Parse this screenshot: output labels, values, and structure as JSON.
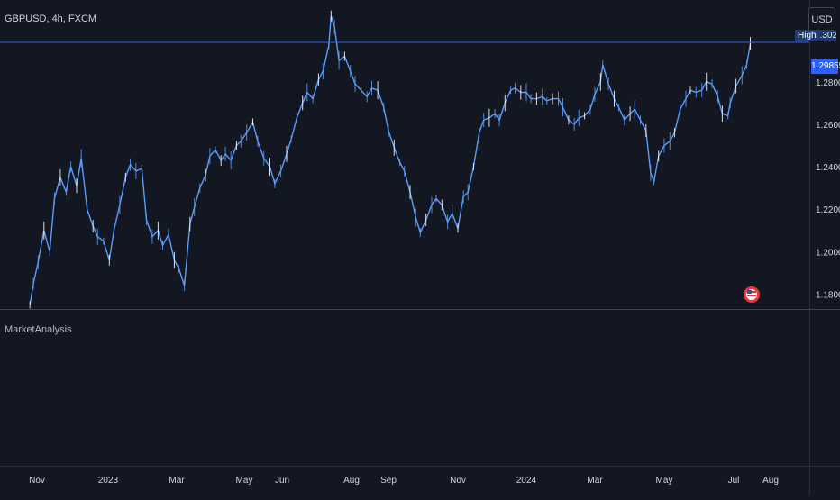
{
  "header": {
    "symbol": "GBPUSD, 4h, FXCM"
  },
  "indicator": {
    "title": "MarketAnalysis"
  },
  "price_scale": {
    "currency": "USD",
    "high_label": "High",
    "high_value_hidden": "1.3021",
    "last_price": "1.29855"
  },
  "colors": {
    "background": "#131722",
    "series": "#5b9cf6",
    "wick": "#ffffff",
    "price_line": "#2962ff",
    "grid_border": "#2a2e39",
    "text": "#d1d4dc",
    "flag_badge": "#e53935"
  },
  "icons": {
    "flag_badge": "us-flag-icon"
  },
  "chart_data": {
    "type": "line",
    "title": "",
    "xlabel": "",
    "ylabel": "",
    "ylim": [
      1.173,
      1.3185
    ],
    "y_ticks": [
      "1.18000",
      "1.20000",
      "1.22000",
      "1.24000",
      "1.26000",
      "1.28000"
    ],
    "x_ticks": [
      "Nov",
      "2023",
      "Mar",
      "May",
      "Jun",
      "Aug",
      "Sep",
      "Nov",
      "2024",
      "Mar",
      "May",
      "Jul",
      "Aug"
    ],
    "last_value": 1.29855,
    "series": [
      {
        "x": [
          "2022-10-26",
          "2022-10-29",
          "2022-11-02",
          "2022-11-07",
          "2022-11-12",
          "2022-11-16",
          "2022-11-21",
          "2022-11-26",
          "2022-11-30",
          "2022-12-05",
          "2022-12-09",
          "2022-12-14",
          "2022-12-19",
          "2022-12-23",
          "2022-12-28",
          "2023-01-02",
          "2023-01-06",
          "2023-01-11",
          "2023-01-16",
          "2023-01-20",
          "2023-01-25",
          "2023-01-30",
          "2023-02-03",
          "2023-02-08",
          "2023-02-13",
          "2023-02-17",
          "2023-02-22",
          "2023-02-27",
          "2023-03-03",
          "2023-03-08",
          "2023-03-13",
          "2023-03-17",
          "2023-03-22",
          "2023-03-27",
          "2023-03-31",
          "2023-04-05",
          "2023-04-10",
          "2023-04-14",
          "2023-04-19",
          "2023-04-24",
          "2023-04-28",
          "2023-05-03",
          "2023-05-08",
          "2023-05-12",
          "2023-05-17",
          "2023-05-22",
          "2023-05-26",
          "2023-05-31",
          "2023-06-05",
          "2023-06-09",
          "2023-06-14",
          "2023-06-19",
          "2023-06-23",
          "2023-06-28",
          "2023-07-03",
          "2023-07-07",
          "2023-07-12",
          "2023-07-14",
          "2023-07-17",
          "2023-07-21",
          "2023-07-26",
          "2023-07-31",
          "2023-08-04",
          "2023-08-09",
          "2023-08-14",
          "2023-08-18",
          "2023-08-23",
          "2023-08-28",
          "2023-09-01",
          "2023-09-06",
          "2023-09-11",
          "2023-09-15",
          "2023-09-20",
          "2023-09-25",
          "2023-09-29",
          "2023-10-04",
          "2023-10-09",
          "2023-10-13",
          "2023-10-18",
          "2023-10-23",
          "2023-10-27",
          "2023-11-01",
          "2023-11-06",
          "2023-11-10",
          "2023-11-15",
          "2023-11-20",
          "2023-11-24",
          "2023-11-29",
          "2023-12-04",
          "2023-12-08",
          "2023-12-13",
          "2023-12-18",
          "2023-12-22",
          "2023-12-27",
          "2024-01-01",
          "2024-01-05",
          "2024-01-10",
          "2024-01-15",
          "2024-01-19",
          "2024-01-24",
          "2024-01-29",
          "2024-02-02",
          "2024-02-07",
          "2024-02-12",
          "2024-02-16",
          "2024-02-21",
          "2024-02-26",
          "2024-03-01",
          "2024-03-06",
          "2024-03-08",
          "2024-03-13",
          "2024-03-18",
          "2024-03-22",
          "2024-03-27",
          "2024-04-01",
          "2024-04-05",
          "2024-04-10",
          "2024-04-15",
          "2024-04-19",
          "2024-04-22",
          "2024-04-26",
          "2024-05-01",
          "2024-05-06",
          "2024-05-10",
          "2024-05-15",
          "2024-05-20",
          "2024-05-24",
          "2024-05-29",
          "2024-06-03",
          "2024-06-07",
          "2024-06-12",
          "2024-06-17",
          "2024-06-21",
          "2024-06-26",
          "2024-06-28",
          "2024-07-03",
          "2024-07-08",
          "2024-07-12",
          "2024-07-15"
        ],
        "values": [
          1.175,
          1.185,
          1.195,
          1.21,
          1.2,
          1.225,
          1.235,
          1.228,
          1.24,
          1.231,
          1.244,
          1.22,
          1.212,
          1.207,
          1.205,
          1.196,
          1.21,
          1.222,
          1.235,
          1.241,
          1.238,
          1.239,
          1.215,
          1.207,
          1.21,
          1.203,
          1.208,
          1.196,
          1.192,
          1.184,
          1.213,
          1.221,
          1.23,
          1.236,
          1.245,
          1.248,
          1.243,
          1.246,
          1.243,
          1.25,
          1.252,
          1.256,
          1.261,
          1.252,
          1.244,
          1.24,
          1.232,
          1.238,
          1.246,
          1.253,
          1.263,
          1.27,
          1.275,
          1.272,
          1.281,
          1.285,
          1.297,
          1.311,
          1.306,
          1.29,
          1.292,
          1.285,
          1.279,
          1.276,
          1.273,
          1.277,
          1.276,
          1.268,
          1.257,
          1.249,
          1.242,
          1.238,
          1.228,
          1.216,
          1.209,
          1.215,
          1.222,
          1.225,
          1.222,
          1.214,
          1.218,
          1.211,
          1.226,
          1.228,
          1.24,
          1.256,
          1.262,
          1.263,
          1.265,
          1.262,
          1.27,
          1.276,
          1.277,
          1.275,
          1.275,
          1.272,
          1.272,
          1.273,
          1.271,
          1.272,
          1.272,
          1.268,
          1.262,
          1.26,
          1.263,
          1.264,
          1.267,
          1.274,
          1.28,
          1.288,
          1.279,
          1.272,
          1.268,
          1.262,
          1.265,
          1.267,
          1.262,
          1.257,
          1.237,
          1.233,
          1.245,
          1.25,
          1.252,
          1.256,
          1.267,
          1.272,
          1.276,
          1.275,
          1.276,
          1.28,
          1.279,
          1.273,
          1.265,
          1.264,
          1.27,
          1.278,
          1.283,
          1.288,
          1.298
        ]
      }
    ]
  }
}
